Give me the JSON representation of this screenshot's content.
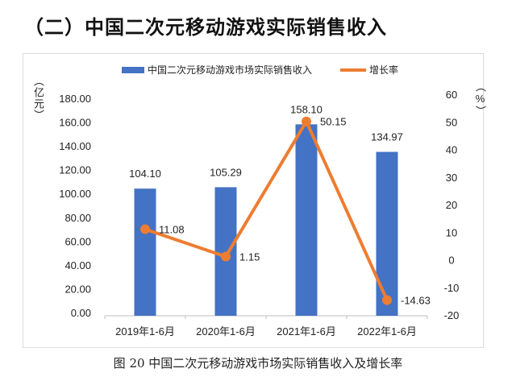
{
  "heading": "（二）中国二次元移动游戏实际销售收入",
  "caption": "图 20 中国二次元移动游戏市场实际销售收入及增长率",
  "colors": {
    "bar": "#4472C4",
    "line": "#ED7D31"
  },
  "chart_data": {
    "type": "bar+line",
    "categories": [
      "2019年1-6月",
      "2020年1-6月",
      "2021年1-6月",
      "2022年1-6月"
    ],
    "series": [
      {
        "name": "中国二次元移动游戏市场实际销售收入",
        "type": "bar",
        "axis": "left",
        "values": [
          104.1,
          105.29,
          158.1,
          134.97
        ],
        "labels": [
          "104.10",
          "105.29",
          "158.10",
          "134.97"
        ]
      },
      {
        "name": "增长率",
        "type": "line",
        "axis": "right",
        "values": [
          11.08,
          1.15,
          50.15,
          -14.63
        ],
        "labels": [
          "11.08",
          "1.15",
          "50.15",
          "-14.63"
        ]
      }
    ],
    "ylabel_left": "（亿元）",
    "ylabel_right": "（%）",
    "ylim_left": [
      0,
      180
    ],
    "yticks_left": [
      "0.00",
      "20.00",
      "40.00",
      "60.00",
      "80.00",
      "100.00",
      "120.00",
      "140.00",
      "160.00",
      "180.00"
    ],
    "ylim_right": [
      -20,
      60
    ],
    "yticks_right": [
      "-20",
      "-10",
      "0",
      "10",
      "20",
      "30",
      "40",
      "50",
      "60"
    ],
    "grid": false,
    "legend": "top"
  }
}
